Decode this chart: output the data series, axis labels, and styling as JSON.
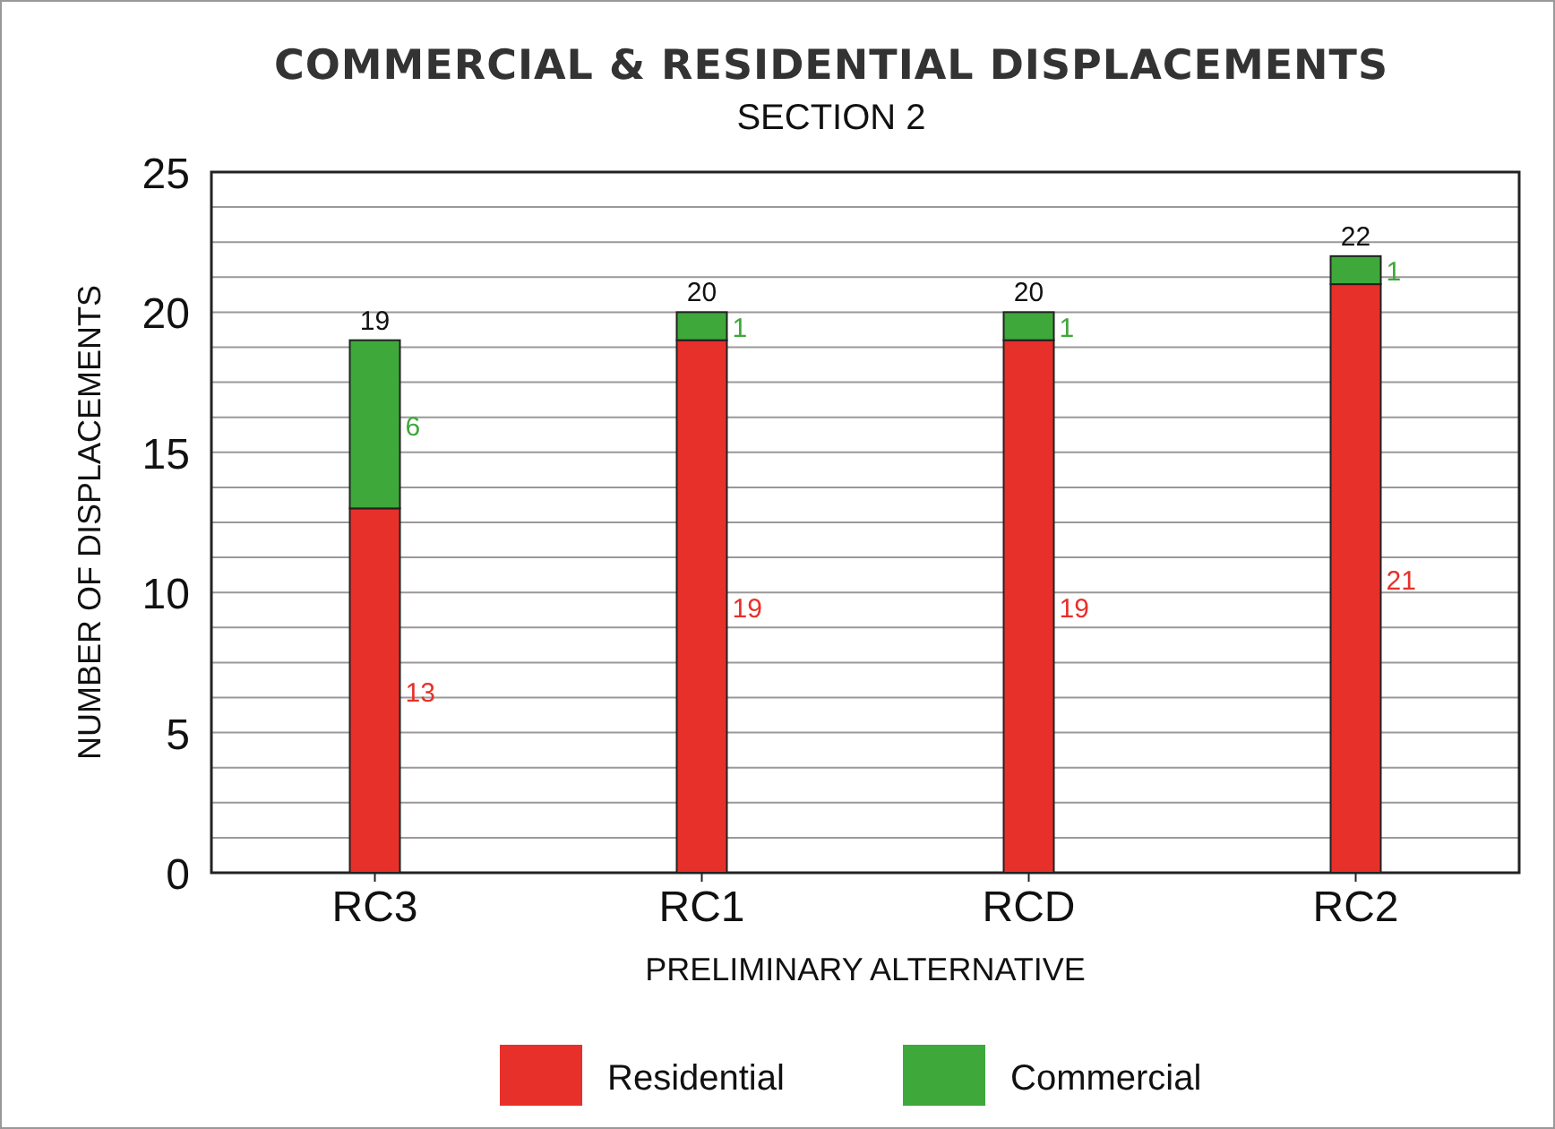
{
  "chart_data": {
    "type": "bar",
    "title": "COMMERCIAL & RESIDENTIAL DISPLACEMENTS",
    "subtitle": "SECTION 2",
    "xlabel": "PRELIMINARY ALTERNATIVE",
    "ylabel": "NUMBER OF DISPLACEMENTS",
    "categories": [
      "RC3",
      "RC1",
      "RCD",
      "RC2"
    ],
    "series": [
      {
        "name": "Residential",
        "color": "#e8302a",
        "values": [
          13,
          19,
          19,
          21
        ]
      },
      {
        "name": "Commercial",
        "color": "#3ea83a",
        "values": [
          6,
          1,
          1,
          1
        ]
      }
    ],
    "stacked": true,
    "data_labels": true,
    "totals": [
      "19",
      "20",
      "20",
      "22"
    ],
    "ylim": [
      0,
      25
    ],
    "yticks": [
      0,
      {
        "value": 1.25,
        "label": null
      },
      {
        "value": 2.5,
        "label": null
      },
      {
        "value": 3.75,
        "label": null
      },
      5,
      {
        "value": 6.25,
        "label": null
      },
      {
        "value": 7.5,
        "label": null
      },
      {
        "value": 8.75,
        "label": null
      },
      10,
      {
        "value": 11.25,
        "label": null
      },
      {
        "value": 12.5,
        "label": null
      },
      {
        "value": 13.75,
        "label": null
      },
      15,
      {
        "value": 16.25,
        "label": null
      },
      {
        "value": 17.5,
        "label": null
      },
      {
        "value": 18.75,
        "label": null
      },
      20,
      {
        "value": 21.25,
        "label": null
      },
      {
        "value": 22.5,
        "label": null
      },
      {
        "value": 23.75,
        "label": null
      },
      25
    ],
    "grid": "y",
    "legend": "bottom"
  }
}
